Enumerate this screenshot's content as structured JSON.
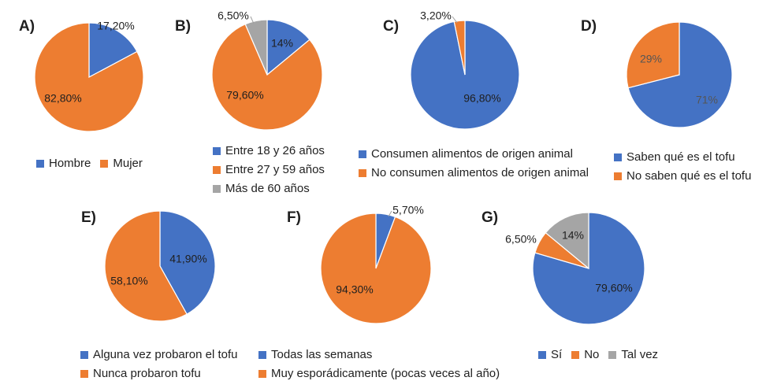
{
  "colors": {
    "blue": "#4472C4",
    "orange": "#ED7D31",
    "gray": "#A5A5A5"
  },
  "chart_data": [
    {
      "id": "A",
      "type": "pie",
      "title": "A)",
      "categories": [
        "Hombre",
        "Mujer"
      ],
      "values": [
        17.2,
        82.8
      ],
      "data_labels": [
        "17,20%",
        "82,80%"
      ],
      "legend": [
        "Hombre",
        "Mujer"
      ]
    },
    {
      "id": "B",
      "type": "pie",
      "title": "B)",
      "categories": [
        "Entre 18 y 26 años",
        "Entre 27 y 59 años",
        "Más de 60 años"
      ],
      "values": [
        14,
        79.6,
        6.5
      ],
      "data_labels": [
        "14%",
        "79,60%",
        "6,50%"
      ],
      "legend": [
        "Entre 18 y 26 años",
        "Entre 27 y 59 años",
        "Más de 60 años"
      ]
    },
    {
      "id": "C",
      "type": "pie",
      "title": "C)",
      "categories": [
        "Consumen alimentos de origen animal",
        "No consumen alimentos de origen animal"
      ],
      "values": [
        96.8,
        3.2
      ],
      "data_labels": [
        "96,80%",
        "3,20%"
      ],
      "legend": [
        "Consumen alimentos de origen animal",
        "No consumen alimentos de origen animal"
      ]
    },
    {
      "id": "D",
      "type": "pie",
      "title": "D)",
      "categories": [
        "Saben qué es el tofu",
        "No saben qué es el tofu"
      ],
      "values": [
        71,
        29
      ],
      "data_labels": [
        "71%",
        "29%"
      ],
      "legend": [
        "Saben qué es el tofu",
        "No saben qué es el tofu"
      ]
    },
    {
      "id": "E",
      "type": "pie",
      "title": "E)",
      "categories": [
        "Alguna vez probaron el tofu",
        "Nunca probaron tofu"
      ],
      "values": [
        41.9,
        58.1
      ],
      "data_labels": [
        "41,90%",
        "58,10%"
      ],
      "legend": [
        "Alguna vez probaron el tofu",
        "Nunca probaron tofu"
      ]
    },
    {
      "id": "F",
      "type": "pie",
      "title": "F)",
      "categories": [
        "Todas las semanas",
        "Muy esporádicamente (pocas veces al año)"
      ],
      "values": [
        5.7,
        94.3
      ],
      "data_labels": [
        "5,70%",
        "94,30%"
      ],
      "legend": [
        "Todas las semanas",
        "Muy esporádicamente (pocas veces al año)"
      ]
    },
    {
      "id": "G",
      "type": "pie",
      "title": "G)",
      "categories": [
        "Sí",
        "No",
        "Tal vez"
      ],
      "values": [
        79.6,
        6.5,
        14
      ],
      "data_labels": [
        "79,60%",
        "6,50%",
        "14%"
      ],
      "legend": [
        "Sí",
        "No",
        "Tal vez"
      ]
    }
  ]
}
